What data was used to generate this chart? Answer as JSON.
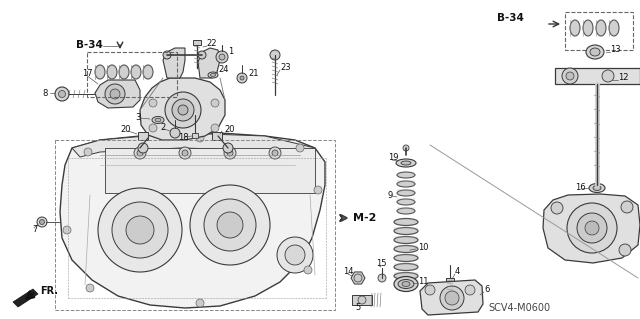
{
  "bg_color": "#ffffff",
  "labels": {
    "B34_left": "B-34",
    "B34_right": "B-34",
    "M2": "M-2",
    "FR": "FR.",
    "ref": "SCV4-M0600"
  },
  "fig_width": 6.4,
  "fig_height": 3.19,
  "dpi": 100,
  "lc": "#3a3a3a",
  "fc_light": "#e0e0e0",
  "fc_mid": "#c8c8c8",
  "fc_dark": "#aaaaaa"
}
